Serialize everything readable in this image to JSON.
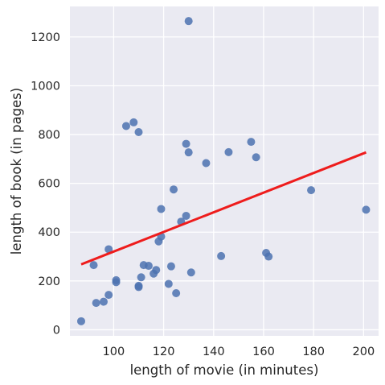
{
  "chart_data": {
    "type": "scatter",
    "xlabel": "length of movie (in minutes)",
    "ylabel": "length of book (in pages)",
    "xlim": [
      82.5,
      206
    ],
    "ylim": [
      -25,
      1325
    ],
    "xticks": [
      100,
      120,
      140,
      160,
      180,
      200
    ],
    "yticks": [
      0,
      200,
      400,
      600,
      800,
      1000,
      1200
    ],
    "grid": true,
    "colors": {
      "background": "#eaeaf2",
      "grid": "#ffffff",
      "points": "#4c72b0",
      "regression_line": "#ee1c1c"
    },
    "points": [
      {
        "x": 87,
        "y": 35
      },
      {
        "x": 92,
        "y": 265
      },
      {
        "x": 93,
        "y": 110
      },
      {
        "x": 96,
        "y": 115
      },
      {
        "x": 98,
        "y": 330
      },
      {
        "x": 98,
        "y": 143
      },
      {
        "x": 101,
        "y": 195
      },
      {
        "x": 101,
        "y": 203
      },
      {
        "x": 105,
        "y": 835
      },
      {
        "x": 108,
        "y": 850
      },
      {
        "x": 110,
        "y": 810
      },
      {
        "x": 110,
        "y": 180
      },
      {
        "x": 110,
        "y": 175
      },
      {
        "x": 111,
        "y": 215
      },
      {
        "x": 112,
        "y": 265
      },
      {
        "x": 114,
        "y": 262
      },
      {
        "x": 116,
        "y": 230
      },
      {
        "x": 117,
        "y": 245
      },
      {
        "x": 118,
        "y": 362
      },
      {
        "x": 119,
        "y": 382
      },
      {
        "x": 119,
        "y": 495
      },
      {
        "x": 122,
        "y": 188
      },
      {
        "x": 123,
        "y": 260
      },
      {
        "x": 124,
        "y": 575
      },
      {
        "x": 125,
        "y": 150
      },
      {
        "x": 127,
        "y": 443
      },
      {
        "x": 129,
        "y": 467
      },
      {
        "x": 129,
        "y": 762
      },
      {
        "x": 130,
        "y": 727
      },
      {
        "x": 130,
        "y": 1265
      },
      {
        "x": 131,
        "y": 235
      },
      {
        "x": 137,
        "y": 683
      },
      {
        "x": 143,
        "y": 302
      },
      {
        "x": 146,
        "y": 728
      },
      {
        "x": 155,
        "y": 770
      },
      {
        "x": 157,
        "y": 707
      },
      {
        "x": 161,
        "y": 315
      },
      {
        "x": 162,
        "y": 300
      },
      {
        "x": 179,
        "y": 572
      },
      {
        "x": 201,
        "y": 492
      }
    ],
    "regression_line": {
      "x": [
        87,
        201
      ],
      "y": [
        268,
        727
      ]
    }
  }
}
